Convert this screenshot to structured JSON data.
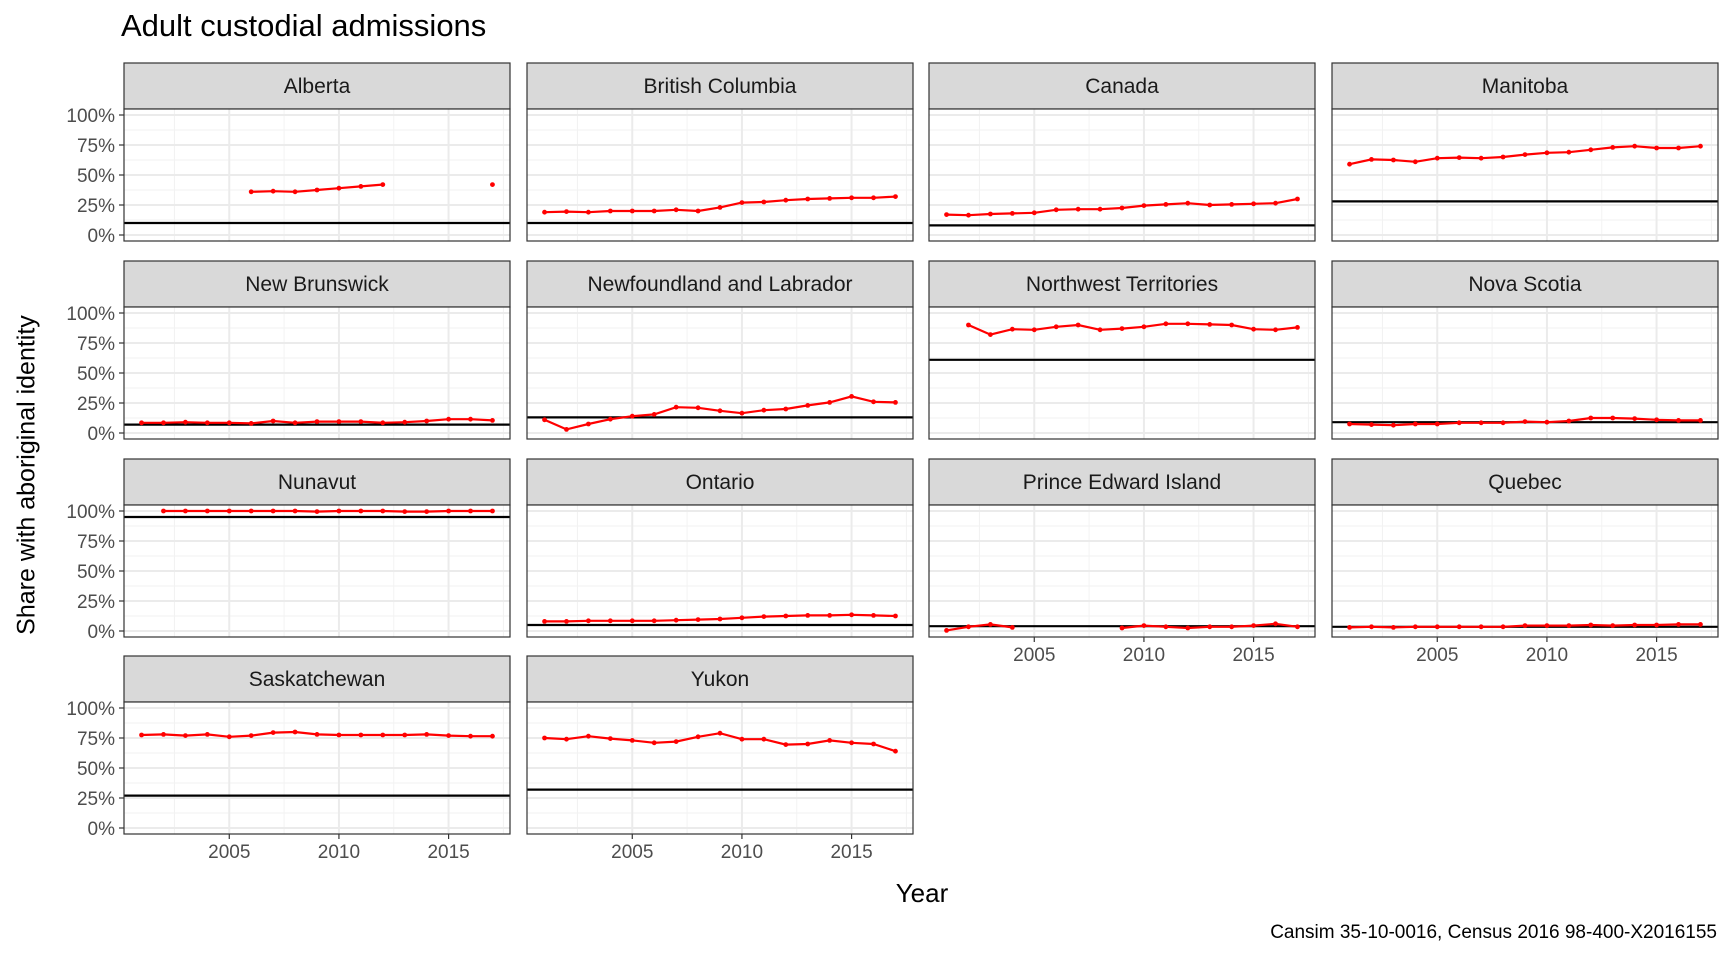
{
  "title": "Adult custodial admissions",
  "caption": "Cansim 35-10-0016, Census 2016 98-400-X2016155",
  "colors": {
    "series": "#ff0000",
    "reference": "#000000",
    "strip_fill": "#d9d9d9",
    "grid": "#ebebeb"
  },
  "chart_data": {
    "type": "line",
    "xlabel": "Year",
    "ylabel": "Share with aboriginal identity",
    "xlim": [
      2000.2,
      2017.8
    ],
    "ylim": [
      -0.05,
      1.05
    ],
    "x_ticks": [
      2005,
      2010,
      2015
    ],
    "x_tick_labels": [
      "2005",
      "2010",
      "2015"
    ],
    "y_ticks": [
      0,
      0.25,
      0.5,
      0.75,
      1.0
    ],
    "y_tick_labels": [
      "0%",
      "25%",
      "50%",
      "75%",
      "100%"
    ],
    "grid": true,
    "facets": [
      {
        "name": "Alberta",
        "reference": 0.1,
        "x": [
          2006,
          2007,
          2008,
          2009,
          2010,
          2011,
          2012,
          2017
        ],
        "y": [
          0.36,
          0.365,
          0.36,
          0.375,
          0.39,
          0.405,
          0.42,
          0.42
        ]
      },
      {
        "name": "British Columbia",
        "reference": 0.1,
        "x": [
          2001,
          2002,
          2003,
          2004,
          2005,
          2006,
          2007,
          2008,
          2009,
          2010,
          2011,
          2012,
          2013,
          2014,
          2015,
          2016,
          2017
        ],
        "y": [
          0.19,
          0.195,
          0.19,
          0.2,
          0.2,
          0.2,
          0.21,
          0.2,
          0.23,
          0.27,
          0.275,
          0.29,
          0.3,
          0.305,
          0.31,
          0.31,
          0.32
        ]
      },
      {
        "name": "Canada",
        "reference": 0.08,
        "x": [
          2001,
          2002,
          2003,
          2004,
          2005,
          2006,
          2007,
          2008,
          2009,
          2010,
          2011,
          2012,
          2013,
          2014,
          2015,
          2016,
          2017
        ],
        "y": [
          0.17,
          0.165,
          0.175,
          0.18,
          0.185,
          0.21,
          0.215,
          0.215,
          0.225,
          0.245,
          0.255,
          0.265,
          0.25,
          0.255,
          0.26,
          0.265,
          0.3
        ]
      },
      {
        "name": "Manitoba",
        "reference": 0.28,
        "x": [
          2001,
          2002,
          2003,
          2004,
          2005,
          2006,
          2007,
          2008,
          2009,
          2010,
          2011,
          2012,
          2013,
          2014,
          2015,
          2016,
          2017
        ],
        "y": [
          0.59,
          0.63,
          0.625,
          0.61,
          0.64,
          0.645,
          0.64,
          0.65,
          0.67,
          0.685,
          0.69,
          0.71,
          0.73,
          0.74,
          0.725,
          0.725,
          0.74
        ]
      },
      {
        "name": "New Brunswick",
        "reference": 0.07,
        "x": [
          2001,
          2002,
          2003,
          2004,
          2005,
          2006,
          2007,
          2008,
          2009,
          2010,
          2011,
          2012,
          2013,
          2014,
          2015,
          2016,
          2017
        ],
        "y": [
          0.085,
          0.085,
          0.09,
          0.085,
          0.085,
          0.08,
          0.1,
          0.085,
          0.095,
          0.095,
          0.095,
          0.085,
          0.09,
          0.1,
          0.115,
          0.115,
          0.105
        ]
      },
      {
        "name": "Newfoundland and Labrador",
        "reference": 0.13,
        "x": [
          2001,
          2002,
          2003,
          2004,
          2005,
          2006,
          2007,
          2008,
          2009,
          2010,
          2011,
          2012,
          2013,
          2014,
          2015,
          2016,
          2017
        ],
        "y": [
          0.11,
          0.03,
          0.075,
          0.115,
          0.14,
          0.155,
          0.215,
          0.21,
          0.185,
          0.165,
          0.19,
          0.2,
          0.23,
          0.255,
          0.305,
          0.26,
          0.255
        ]
      },
      {
        "name": "Northwest Territories",
        "reference": 0.61,
        "x": [
          2002,
          2003,
          2004,
          2005,
          2006,
          2007,
          2008,
          2009,
          2010,
          2011,
          2012,
          2013,
          2014,
          2015,
          2016,
          2017
        ],
        "y": [
          0.9,
          0.82,
          0.865,
          0.86,
          0.885,
          0.9,
          0.86,
          0.87,
          0.885,
          0.91,
          0.91,
          0.905,
          0.9,
          0.865,
          0.86,
          0.88
        ]
      },
      {
        "name": "Nova Scotia",
        "reference": 0.09,
        "x": [
          2001,
          2002,
          2003,
          2004,
          2005,
          2006,
          2007,
          2008,
          2009,
          2010,
          2011,
          2012,
          2013,
          2014,
          2015,
          2016,
          2017
        ],
        "y": [
          0.075,
          0.07,
          0.065,
          0.075,
          0.075,
          0.085,
          0.085,
          0.085,
          0.095,
          0.09,
          0.1,
          0.125,
          0.125,
          0.12,
          0.11,
          0.105,
          0.105
        ]
      },
      {
        "name": "Nunavut",
        "reference": 0.95,
        "x": [
          2002,
          2003,
          2004,
          2005,
          2006,
          2007,
          2008,
          2009,
          2010,
          2011,
          2012,
          2013,
          2014,
          2015,
          2016,
          2017
        ],
        "y": [
          1.0,
          1.0,
          1.0,
          1.0,
          1.0,
          1.0,
          1.0,
          0.995,
          1.0,
          1.0,
          1.0,
          0.995,
          0.995,
          1.0,
          1.0,
          1.0
        ]
      },
      {
        "name": "Ontario",
        "reference": 0.05,
        "x": [
          2001,
          2002,
          2003,
          2004,
          2005,
          2006,
          2007,
          2008,
          2009,
          2010,
          2011,
          2012,
          2013,
          2014,
          2015,
          2016,
          2017
        ],
        "y": [
          0.08,
          0.08,
          0.085,
          0.085,
          0.085,
          0.085,
          0.09,
          0.095,
          0.1,
          0.11,
          0.12,
          0.125,
          0.13,
          0.13,
          0.135,
          0.13,
          0.125
        ]
      },
      {
        "name": "Prince Edward Island",
        "reference": 0.04,
        "x": [
          2001,
          2002,
          2003,
          2004,
          2009,
          2010,
          2011,
          2012,
          2013,
          2014,
          2015,
          2016,
          2017
        ],
        "y": [
          0.005,
          0.035,
          0.055,
          0.03,
          0.025,
          0.045,
          0.035,
          0.025,
          0.035,
          0.035,
          0.045,
          0.06,
          0.035
        ]
      },
      {
        "name": "Quebec",
        "reference": 0.035,
        "x": [
          2001,
          2002,
          2003,
          2004,
          2005,
          2006,
          2007,
          2008,
          2009,
          2010,
          2011,
          2012,
          2013,
          2014,
          2015,
          2016,
          2017
        ],
        "y": [
          0.03,
          0.035,
          0.03,
          0.035,
          0.035,
          0.035,
          0.035,
          0.035,
          0.045,
          0.045,
          0.045,
          0.05,
          0.045,
          0.05,
          0.05,
          0.055,
          0.055
        ]
      },
      {
        "name": "Saskatchewan",
        "reference": 0.27,
        "x": [
          2001,
          2002,
          2003,
          2004,
          2005,
          2006,
          2007,
          2008,
          2009,
          2010,
          2011,
          2012,
          2013,
          2014,
          2015,
          2016,
          2017
        ],
        "y": [
          0.775,
          0.78,
          0.77,
          0.78,
          0.76,
          0.77,
          0.795,
          0.8,
          0.78,
          0.775,
          0.775,
          0.775,
          0.775,
          0.78,
          0.77,
          0.765,
          0.765
        ]
      },
      {
        "name": "Yukon",
        "reference": 0.32,
        "x": [
          2001,
          2002,
          2003,
          2004,
          2005,
          2006,
          2007,
          2008,
          2009,
          2010,
          2011,
          2012,
          2013,
          2014,
          2015,
          2016,
          2017
        ],
        "y": [
          0.75,
          0.74,
          0.765,
          0.745,
          0.73,
          0.71,
          0.72,
          0.76,
          0.79,
          0.74,
          0.74,
          0.695,
          0.7,
          0.73,
          0.71,
          0.7,
          0.64
        ]
      }
    ]
  }
}
